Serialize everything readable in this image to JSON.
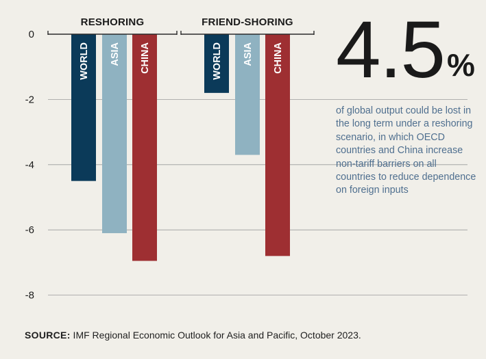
{
  "chart_data": {
    "type": "bar",
    "groups": [
      "RESHORING",
      "FRIEND-SHORING"
    ],
    "categories": [
      "WORLD",
      "ASIA",
      "CHINA"
    ],
    "series": [
      {
        "group": "RESHORING",
        "values": [
          -4.5,
          -6.1,
          -6.95
        ]
      },
      {
        "group": "FRIEND-SHORING",
        "values": [
          -1.8,
          -3.7,
          -6.8
        ]
      }
    ],
    "colors": {
      "WORLD": "#0b3a59",
      "ASIA": "#8fb2c1",
      "CHINA": "#9e2f32"
    },
    "yticks": [
      0,
      -2,
      -4,
      -6,
      -8
    ],
    "ylim": [
      -8,
      0
    ],
    "grid": true
  },
  "callout": {
    "value": "4.5",
    "unit": "%",
    "text": "of global output could be lost in the long term under a reshoring scenario, in which OECD countries and China increase non-tariff barriers on all countries to reduce dependence on foreign inputs"
  },
  "source": {
    "label": "SOURCE:",
    "text": " IMF Regional Economic Outlook for Asia and Pacific, October 2023."
  }
}
